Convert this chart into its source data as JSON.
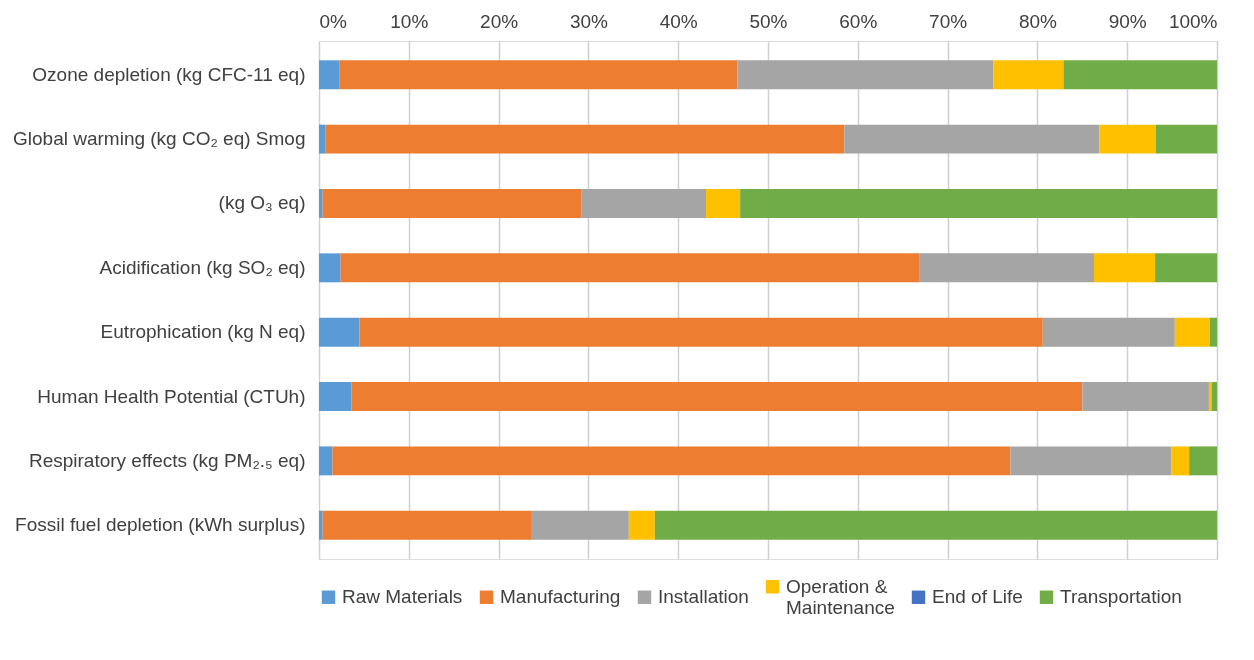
{
  "chart_data": {
    "type": "bar",
    "orientation": "horizontal",
    "stacked": true,
    "categories": [
      "Ozone depletion (kg CFC-11 eq)",
      "Global warming (kg CO₂ eq) Smog",
      "(kg O₃ eq)",
      "Acidification (kg SO₂ eq)",
      "Eutrophication (kg N eq)",
      "Human Health Potential (CTUh)",
      "Respiratory effects (kg PM₂.₅ eq)",
      "Fossil fuel depletion (kWh surplus)"
    ],
    "series": [
      {
        "name": "Raw Materials",
        "color": "#5b9bd5",
        "values": [
          2.3,
          0.7,
          0.4,
          2.4,
          4.5,
          3.6,
          1.5,
          0.4
        ]
      },
      {
        "name": "Manufacturing",
        "color": "#ed7d31",
        "values": [
          44.3,
          57.8,
          28.8,
          64.5,
          76.1,
          81.4,
          75.5,
          23.3
        ]
      },
      {
        "name": "Installation",
        "color": "#a5a5a5",
        "values": [
          28.5,
          28.4,
          13.9,
          19.4,
          14.7,
          14.1,
          17.9,
          10.8
        ]
      },
      {
        "name": "Operation & Maintenance",
        "color": "#ffc000",
        "values": [
          7.8,
          6.3,
          3.8,
          6.8,
          3.9,
          0.3,
          2.0,
          2.9
        ]
      },
      {
        "name": "End of Life",
        "color": "#4472c4",
        "values": [
          0,
          0,
          0,
          0,
          0,
          0,
          0,
          0
        ]
      },
      {
        "name": "Transportation",
        "color": "#70ad47",
        "values": [
          17.1,
          6.8,
          53.1,
          6.9,
          0.8,
          0.6,
          3.1,
          62.6
        ]
      }
    ],
    "xlim": [
      0,
      100
    ],
    "xticks": [
      {
        "value": 0,
        "label": "0%"
      },
      {
        "value": 10,
        "label": "10%"
      },
      {
        "value": 20,
        "label": "20%"
      },
      {
        "value": 30,
        "label": "30%"
      },
      {
        "value": 40,
        "label": "40%"
      },
      {
        "value": 50,
        "label": "50%"
      },
      {
        "value": 60,
        "label": "60%"
      },
      {
        "value": 70,
        "label": "70%"
      },
      {
        "value": 80,
        "label": "80%"
      },
      {
        "value": 90,
        "label": "90%"
      },
      {
        "value": 100,
        "label": "100%"
      }
    ],
    "grid": "x",
    "legend": "bottom"
  }
}
